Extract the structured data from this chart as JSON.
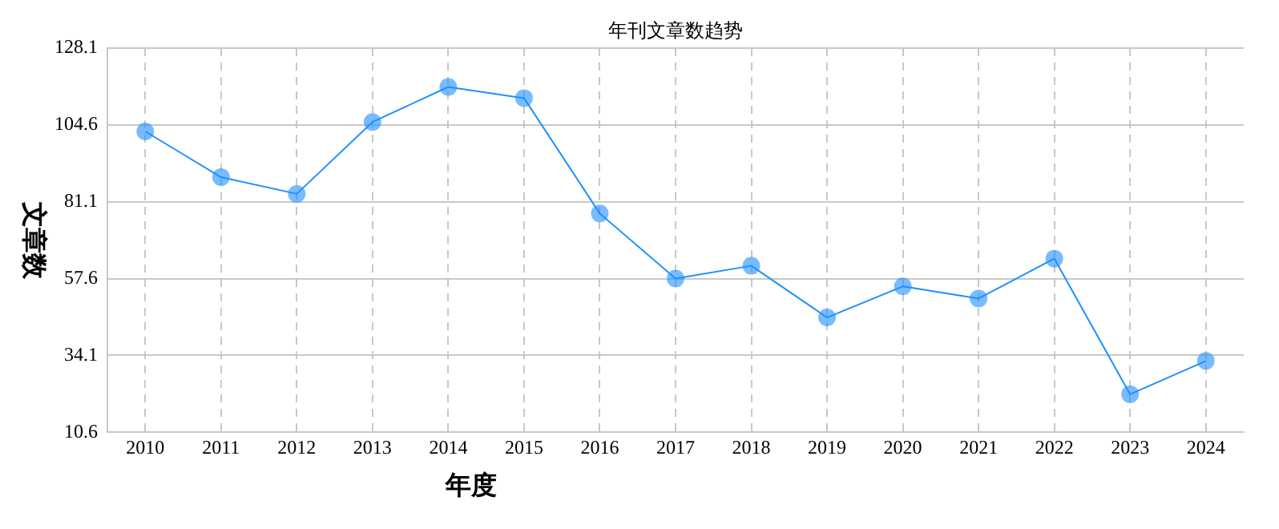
{
  "chart_data": {
    "type": "line",
    "title": "年刊文章数趋势",
    "xlabel": "年度",
    "ylabel": "文章数",
    "categories": [
      "2010",
      "2011",
      "2012",
      "2013",
      "2014",
      "2015",
      "2016",
      "2017",
      "2018",
      "2019",
      "2020",
      "2021",
      "2022",
      "2023",
      "2024"
    ],
    "series": [
      {
        "color": "#1e90ff",
        "values": [
          102.6,
          88.6,
          83.5,
          105.5,
          116.2,
          112.8,
          77.5,
          57.6,
          61.5,
          45.7,
          55.2,
          51.5,
          63.7,
          22.2,
          32.4
        ]
      }
    ],
    "ylim": [
      10.6,
      128.1
    ],
    "yticks": [
      10.6,
      34.1,
      57.6,
      81.1,
      104.6,
      128.1
    ],
    "grid": true,
    "legend": false,
    "marker": "circle",
    "line_style": "solid"
  }
}
